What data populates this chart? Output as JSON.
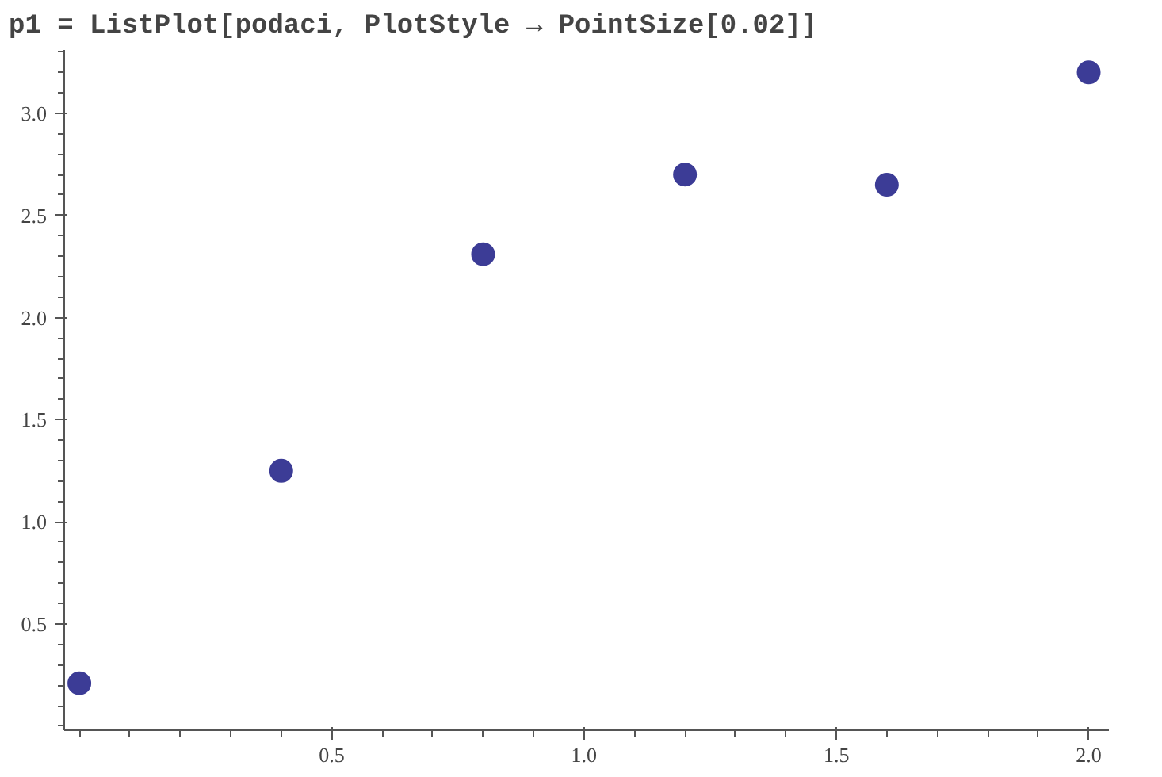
{
  "chart_data": {
    "type": "scatter",
    "title": "p1 = ListPlot[podaci, PlotStyle → PointSize[0.02]]",
    "x": [
      0,
      0.4,
      0.8,
      1.2,
      1.6,
      2.0
    ],
    "series": [
      {
        "color": "#3c3c96",
        "values": [
          0.21,
          1.25,
          2.31,
          2.7,
          2.65,
          3.2
        ]
      }
    ],
    "marker": "circle",
    "xlim": [
      -0.03,
      2.04
    ],
    "ylim": [
      -0.02,
      3.31
    ],
    "xticks": [
      0.5,
      {
        "value": 1,
        "label": "1.0"
      },
      1.5,
      {
        "value": 2,
        "label": "2.0"
      }
    ],
    "yticks": [
      0.5,
      {
        "value": 1,
        "label": "1.0"
      },
      1.5,
      {
        "value": 2,
        "label": "2.0"
      },
      2.5,
      {
        "value": 3,
        "label": "3.0"
      }
    ]
  }
}
